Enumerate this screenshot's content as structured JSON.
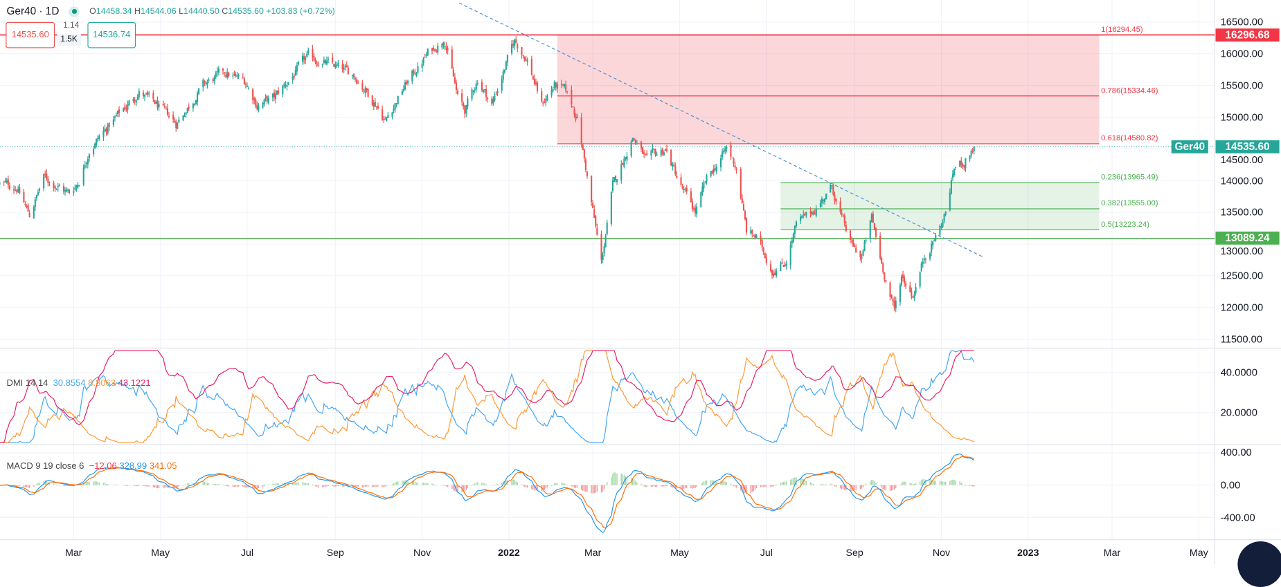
{
  "header": {
    "symbol": "Ger40 · 1D",
    "open_label": "O",
    "open": "14458.34",
    "high_label": "H",
    "high": "14544.06",
    "low_label": "L",
    "low": "14440.50",
    "close_label": "C",
    "close": "14535.60",
    "change": "+103.83 (+0.72%)"
  },
  "trade": {
    "sell": "14535.60",
    "buy": "14536.74",
    "spread": "1.14",
    "qty": "1.5K"
  },
  "price_axis": {
    "ticks": [
      "16500.00",
      "16000.00",
      "15500.00",
      "15000.00",
      "14500.00",
      "14000.00",
      "13500.00",
      "13000.00",
      "12500.00",
      "12000.00",
      "11500.00"
    ],
    "tick_values": [
      16500,
      16000,
      15500,
      15000,
      14500,
      14000,
      13500,
      13000,
      12500,
      12000,
      11500
    ],
    "badges": {
      "top_line": "16296.68",
      "top_line_value": 16296.68,
      "last_symbol": "Ger40",
      "last": "14535.60",
      "last_value": 14535.6,
      "support": "13089.24",
      "support_value": 13089.24
    }
  },
  "fib_red": [
    {
      "label": "1(16294.45)",
      "value": 16294.45
    },
    {
      "label": "0.786(15334.46)",
      "value": 15334.46
    },
    {
      "label": "0.618(14580.82)",
      "value": 14580.82
    }
  ],
  "fib_green": [
    {
      "label": "0.236(13965.49)",
      "value": 13965.49
    },
    {
      "label": "0.382(13555.00)",
      "value": 13555.0
    },
    {
      "label": "0.5(13223.24)",
      "value": 13223.24
    }
  ],
  "dmi": {
    "label": "DMI 14 14",
    "plus": "30.8554",
    "minus": "8.8063",
    "adx": "43.1221",
    "ticks": [
      "40.0000",
      "20.0000"
    ],
    "tick_values": [
      40,
      20
    ]
  },
  "macd": {
    "label": "MACD 9 19 close 6",
    "hist": "−12.06",
    "macd": "328.99",
    "signal": "341.05",
    "ticks": [
      "400.00",
      "0.00",
      "-400.00"
    ],
    "tick_values": [
      400,
      0,
      -400
    ]
  },
  "time_axis": [
    {
      "label": "Mar",
      "date": "2021-03-01",
      "bold": false
    },
    {
      "label": "May",
      "date": "2021-05-01",
      "bold": false
    },
    {
      "label": "Jul",
      "date": "2021-07-01",
      "bold": false
    },
    {
      "label": "Sep",
      "date": "2021-09-01",
      "bold": false
    },
    {
      "label": "Nov",
      "date": "2021-11-01",
      "bold": false
    },
    {
      "label": "2022",
      "date": "2022-01-01",
      "bold": true
    },
    {
      "label": "Mar",
      "date": "2022-03-01",
      "bold": false
    },
    {
      "label": "May",
      "date": "2022-05-01",
      "bold": false
    },
    {
      "label": "Jul",
      "date": "2022-07-01",
      "bold": false
    },
    {
      "label": "Sep",
      "date": "2022-09-01",
      "bold": false
    },
    {
      "label": "Nov",
      "date": "2022-11-01",
      "bold": false
    },
    {
      "label": "2023",
      "date": "2023-01-01",
      "bold": true
    },
    {
      "label": "Mar",
      "date": "2023-03-01",
      "bold": false
    },
    {
      "label": "May",
      "date": "2023-05-01",
      "bold": false
    }
  ],
  "colors": {
    "up": "#26a69a",
    "down": "#ef5350",
    "plus_di": "#42a5f5",
    "minus_di": "#ff9832",
    "adx": "#e91e63",
    "macd": "#2196f3",
    "signal": "#ff6d00",
    "fib_red": "#f23645",
    "fib_green": "#4caf50"
  },
  "chart_data": {
    "type": "candlestick",
    "title": "Ger40 · 1D",
    "ylim": [
      11500,
      16500
    ],
    "closes_approx": [
      [
        "2021-01-08",
        13950
      ],
      [
        "2021-01-20",
        13900
      ],
      [
        "2021-01-29",
        13450
      ],
      [
        "2021-02-08",
        14050
      ],
      [
        "2021-02-19",
        13900
      ],
      [
        "2021-02-26",
        13800
      ],
      [
        "2021-03-05",
        14000
      ],
      [
        "2021-03-12",
        14500
      ],
      [
        "2021-03-31",
        15000
      ],
      [
        "2021-04-16",
        15400
      ],
      [
        "2021-04-30",
        15150
      ],
      [
        "2021-05-12",
        14900
      ],
      [
        "2021-05-31",
        15500
      ],
      [
        "2021-06-15",
        15700
      ],
      [
        "2021-06-30",
        15550
      ],
      [
        "2021-07-08",
        15200
      ],
      [
        "2021-07-20",
        15300
      ],
      [
        "2021-08-13",
        15950
      ],
      [
        "2021-08-31",
        15800
      ],
      [
        "2021-09-15",
        15650
      ],
      [
        "2021-09-30",
        15200
      ],
      [
        "2021-10-06",
        14950
      ],
      [
        "2021-10-20",
        15500
      ],
      [
        "2021-11-05",
        16000
      ],
      [
        "2021-11-17",
        16250
      ],
      [
        "2021-11-26",
        15300
      ],
      [
        "2021-12-01",
        15100
      ],
      [
        "2021-12-10",
        15600
      ],
      [
        "2021-12-20",
        15200
      ],
      [
        "2021-12-31",
        15900
      ],
      [
        "2022-01-05",
        16200
      ],
      [
        "2022-01-14",
        15900
      ],
      [
        "2022-01-24",
        15200
      ],
      [
        "2022-02-02",
        15500
      ],
      [
        "2022-02-10",
        15400
      ],
      [
        "2022-02-18",
        15000
      ],
      [
        "2022-02-24",
        14200
      ],
      [
        "2022-03-07",
        12700
      ],
      [
        "2022-03-15",
        13900
      ],
      [
        "2022-03-29",
        14700
      ],
      [
        "2022-04-08",
        14300
      ],
      [
        "2022-04-21",
        14500
      ],
      [
        "2022-05-02",
        13900
      ],
      [
        "2022-05-12",
        13500
      ],
      [
        "2022-05-20",
        14000
      ],
      [
        "2022-06-03",
        14500
      ],
      [
        "2022-06-10",
        14200
      ],
      [
        "2022-06-17",
        13200
      ],
      [
        "2022-06-24",
        13100
      ],
      [
        "2022-07-05",
        12600
      ],
      [
        "2022-07-14",
        12700
      ],
      [
        "2022-07-22",
        13300
      ],
      [
        "2022-08-02",
        13500
      ],
      [
        "2022-08-16",
        13900
      ],
      [
        "2022-08-29",
        13000
      ],
      [
        "2022-09-06",
        12800
      ],
      [
        "2022-09-13",
        13400
      ],
      [
        "2022-09-20",
        12700
      ],
      [
        "2022-09-29",
        11950
      ],
      [
        "2022-10-04",
        12500
      ],
      [
        "2022-10-12",
        12200
      ],
      [
        "2022-10-20",
        12800
      ],
      [
        "2022-10-31",
        13250
      ],
      [
        "2022-11-04",
        13500
      ],
      [
        "2022-11-10",
        14200
      ],
      [
        "2022-11-17",
        14300
      ],
      [
        "2022-11-24",
        14535.6
      ]
    ],
    "trendline": [
      [
        "2021-11-27",
        16800
      ],
      [
        "2022-11-30",
        12800
      ]
    ],
    "fib_zone_start": "2022-02-04",
    "fib_zone_green_start": "2022-07-11",
    "fib_zone_end": "2023-02-20"
  }
}
